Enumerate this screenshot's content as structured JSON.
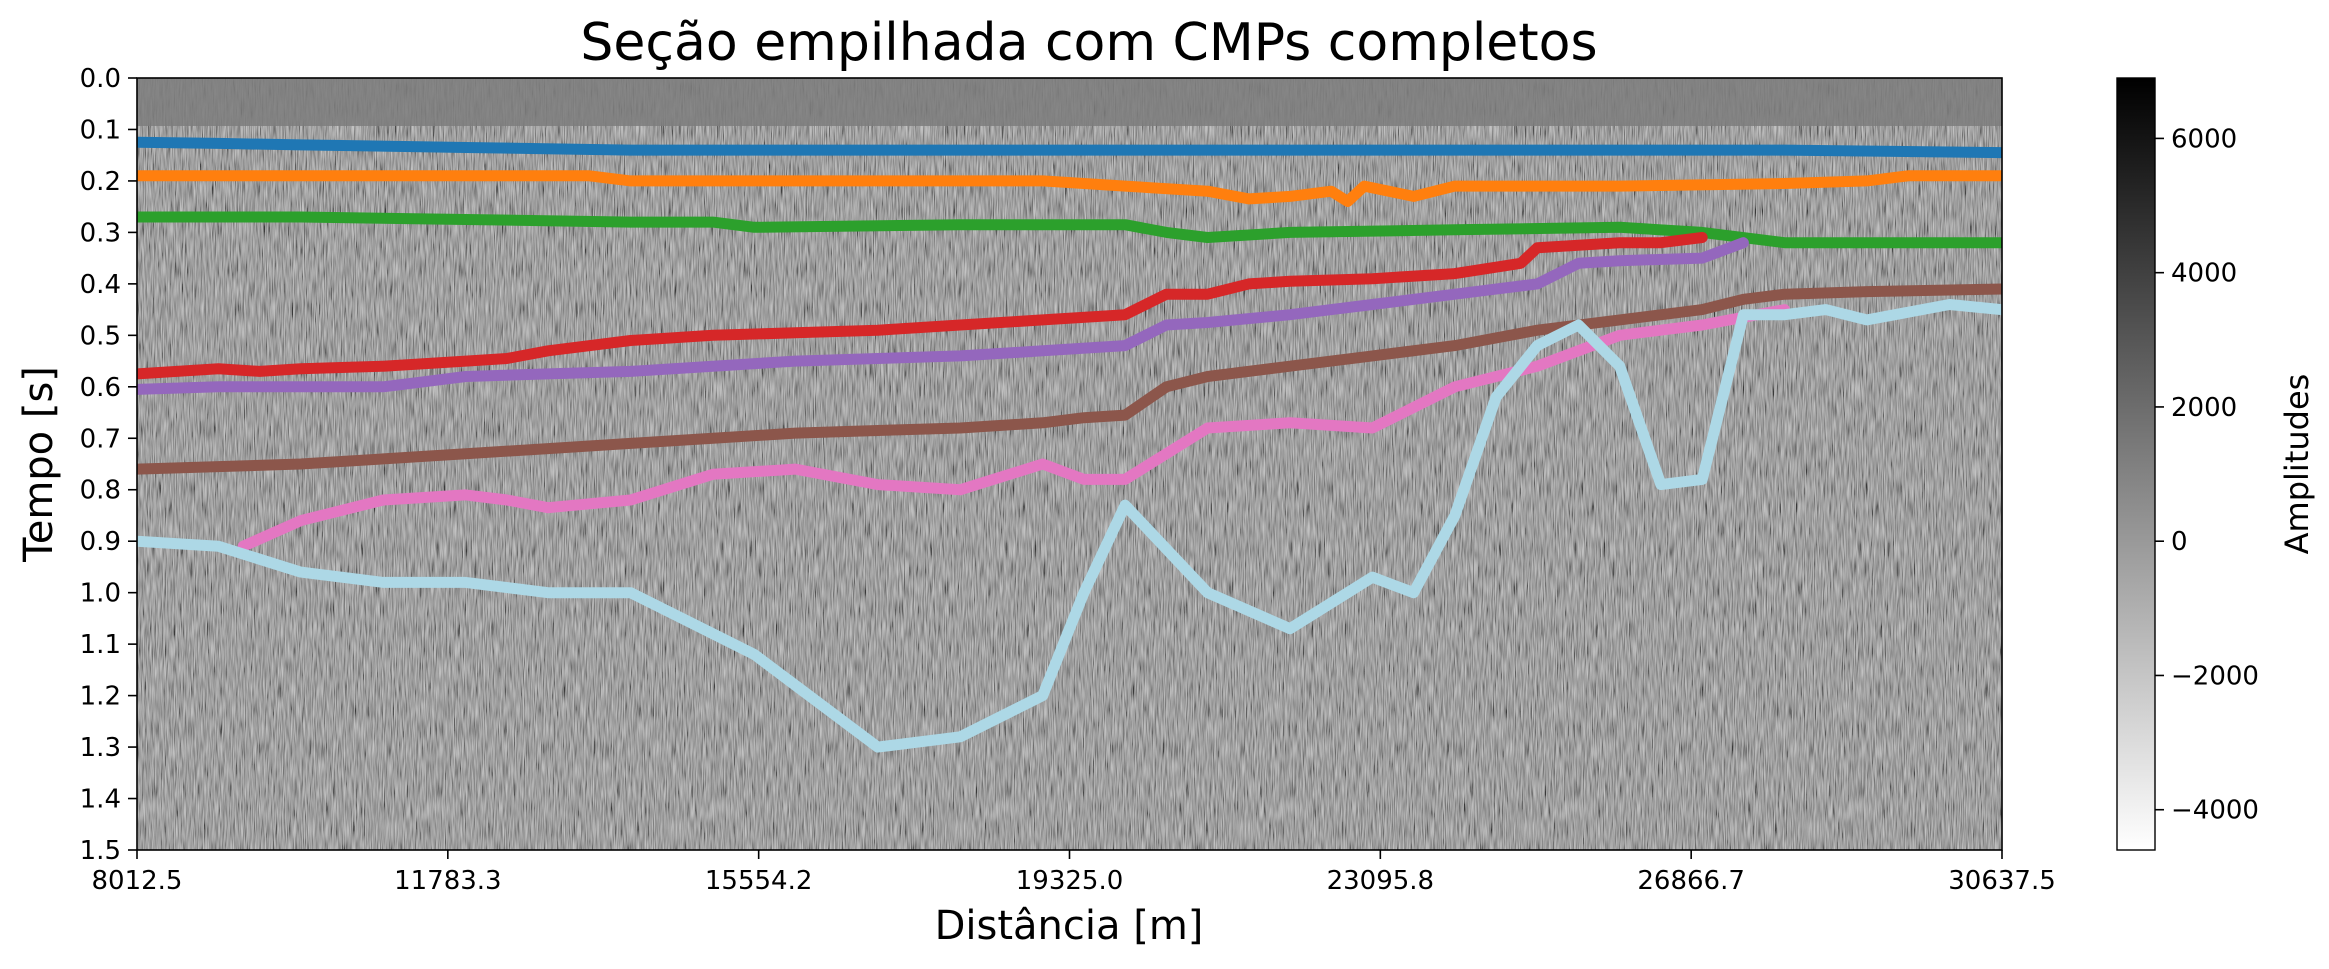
{
  "chart_data": {
    "type": "line",
    "title": "Seção empilhada com CMPs completos",
    "xlabel": "Distância [m]",
    "ylabel": "Tempo [s]",
    "xlim": [
      8012.5,
      30637.5
    ],
    "ylim": [
      1.5,
      0.0
    ],
    "x_ticks": [
      "8012.5",
      "11783.3",
      "15554.2",
      "19325.0",
      "23095.8",
      "26866.7",
      "30637.5"
    ],
    "y_ticks": [
      "0.0",
      "0.1",
      "0.2",
      "0.3",
      "0.4",
      "0.5",
      "0.6",
      "0.7",
      "0.8",
      "0.9",
      "1.0",
      "1.1",
      "1.2",
      "1.3",
      "1.4",
      "1.5"
    ],
    "background": "grayscale seismic stacked section",
    "colorbar": {
      "label": "Amplitudes",
      "range": [
        -4600,
        6900
      ],
      "ticks": [
        "6000",
        "4000",
        "2000",
        "0",
        "−2000",
        "−4000"
      ],
      "tick_values": [
        6000,
        4000,
        2000,
        0,
        -2000,
        -4000
      ],
      "colormap": "Greys"
    },
    "series": [
      {
        "color": "#1f77b4",
        "x": [
          8012.5,
          9000,
          10000,
          12000,
          14000,
          16000,
          18000,
          20000,
          22000,
          24000,
          26000,
          28000,
          30637.5
        ],
        "y": [
          0.125,
          0.127,
          0.13,
          0.135,
          0.14,
          0.14,
          0.14,
          0.14,
          0.14,
          0.14,
          0.14,
          0.14,
          0.145
        ]
      },
      {
        "color": "#ff7f0e",
        "x": [
          8012.5,
          10000,
          12000,
          13500,
          14000,
          16000,
          18000,
          19000,
          20000,
          21000,
          21500,
          22000,
          22500,
          22700,
          22900,
          23500,
          24000,
          26000,
          28000,
          29000,
          29500,
          30637.5
        ],
        "y": [
          0.19,
          0.19,
          0.19,
          0.19,
          0.2,
          0.2,
          0.2,
          0.2,
          0.21,
          0.22,
          0.235,
          0.23,
          0.22,
          0.24,
          0.21,
          0.23,
          0.21,
          0.21,
          0.205,
          0.2,
          0.19,
          0.19
        ]
      },
      {
        "color": "#2ca02c",
        "x": [
          8012.5,
          10000,
          12000,
          14000,
          15000,
          15500,
          18000,
          20000,
          20500,
          21000,
          22000,
          24000,
          26000,
          27000,
          28000,
          30637.5
        ],
        "y": [
          0.27,
          0.27,
          0.275,
          0.28,
          0.28,
          0.29,
          0.285,
          0.285,
          0.3,
          0.31,
          0.3,
          0.295,
          0.29,
          0.3,
          0.32,
          0.32
        ]
      },
      {
        "color": "#d62728",
        "x": [
          8012.5,
          9000,
          9500,
          10000,
          11000,
          12000,
          12500,
          13000,
          14000,
          15000,
          16000,
          17000,
          18000,
          19000,
          20000,
          20500,
          21000,
          21500,
          22000,
          23000,
          24000,
          24800,
          25000,
          26000,
          26500,
          27000
        ],
        "y": [
          0.575,
          0.565,
          0.57,
          0.565,
          0.56,
          0.55,
          0.545,
          0.53,
          0.51,
          0.5,
          0.495,
          0.49,
          0.48,
          0.47,
          0.46,
          0.42,
          0.42,
          0.4,
          0.395,
          0.39,
          0.38,
          0.36,
          0.33,
          0.32,
          0.32,
          0.31
        ]
      },
      {
        "color": "#9467bd",
        "x": [
          8012.5,
          9000,
          10000,
          11000,
          11500,
          12000,
          13000,
          14000,
          15000,
          16000,
          17000,
          18000,
          19000,
          20000,
          20500,
          21000,
          22000,
          23000,
          24000,
          25000,
          25500,
          26000,
          27000,
          27500
        ],
        "y": [
          0.605,
          0.6,
          0.6,
          0.6,
          0.59,
          0.58,
          0.575,
          0.57,
          0.56,
          0.55,
          0.545,
          0.54,
          0.53,
          0.52,
          0.48,
          0.475,
          0.46,
          0.44,
          0.42,
          0.4,
          0.36,
          0.355,
          0.35,
          0.32
        ]
      },
      {
        "color": "#8c564b",
        "x": [
          8012.5,
          9000,
          10000,
          11000,
          12000,
          13000,
          14000,
          15000,
          16000,
          17000,
          18000,
          19000,
          19500,
          20000,
          20500,
          21000,
          22000,
          23000,
          24000,
          25000,
          26000,
          27000,
          27500,
          28000,
          29000,
          30637.5
        ],
        "y": [
          0.76,
          0.755,
          0.75,
          0.74,
          0.73,
          0.72,
          0.71,
          0.7,
          0.69,
          0.685,
          0.68,
          0.67,
          0.66,
          0.655,
          0.6,
          0.58,
          0.56,
          0.54,
          0.52,
          0.49,
          0.47,
          0.45,
          0.43,
          0.42,
          0.415,
          0.41
        ]
      },
      {
        "color": "#e377c2",
        "x": [
          9300,
          10000,
          11000,
          12000,
          12500,
          13000,
          14000,
          15000,
          16000,
          17000,
          18000,
          19000,
          19500,
          20000,
          21000,
          22000,
          23000,
          24000,
          25000,
          26000,
          27000,
          28000
        ],
        "y": [
          0.91,
          0.86,
          0.82,
          0.81,
          0.82,
          0.835,
          0.82,
          0.77,
          0.76,
          0.79,
          0.8,
          0.75,
          0.78,
          0.78,
          0.68,
          0.67,
          0.68,
          0.6,
          0.56,
          0.5,
          0.48,
          0.45
        ]
      },
      {
        "color": "#add8e6",
        "x": [
          8012.5,
          9000,
          10000,
          11000,
          12000,
          13000,
          14000,
          15000,
          15500,
          16000,
          17000,
          18000,
          19000,
          19500,
          20000,
          21000,
          22000,
          23000,
          23500,
          24000,
          24500,
          25000,
          25500,
          26000,
          26500,
          27000,
          27500,
          28000,
          28500,
          29000,
          30000,
          30637.5
        ],
        "y": [
          0.9,
          0.91,
          0.96,
          0.98,
          0.98,
          1.0,
          1.0,
          1.08,
          1.12,
          1.18,
          1.3,
          1.28,
          1.2,
          1.0,
          0.83,
          1.0,
          1.07,
          0.97,
          1.0,
          0.85,
          0.62,
          0.52,
          0.48,
          0.56,
          0.79,
          0.78,
          0.46,
          0.46,
          0.45,
          0.47,
          0.44,
          0.45
        ]
      }
    ]
  }
}
